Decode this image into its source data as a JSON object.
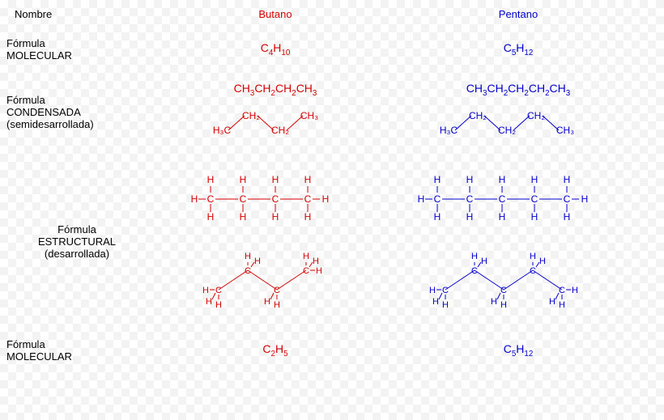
{
  "headers": {
    "col0": "Nombre",
    "col1": "Butano",
    "col2": "Pentano"
  },
  "rows": {
    "molecular": {
      "label1": "Fórmula",
      "label2": "MOLECULAR"
    },
    "condensed": {
      "label1": "Fórmula",
      "label2": "CONDENSADA",
      "label3": "(semidesarrollada)"
    },
    "structural": {
      "label1": "Fórmula",
      "label2": "ESTRUCTURAL",
      "label3": "(desarrollada)"
    },
    "molecular2": {
      "label1": "Fórmula",
      "label2": "MOLECULAR"
    }
  },
  "butano": {
    "color": "#d40000",
    "molecular": {
      "base": "C",
      "s1": "4",
      "mid": "H",
      "s2": "10"
    },
    "condensed_flat": [
      "CH",
      "3",
      "CH",
      "2",
      "CH",
      "2",
      "CH",
      "3"
    ],
    "condensed_zigzag": {
      "groups": [
        "H₃C",
        "CH₂",
        "CH₂",
        "CH₃"
      ],
      "n": 4
    },
    "structural": {
      "carbons": 4
    },
    "molecular2": {
      "base": "C",
      "s1": "2",
      "mid": "H",
      "s2": "5"
    }
  },
  "pentano": {
    "color": "#0000cc",
    "molecular": {
      "base": "C",
      "s1": "5",
      "mid": "H",
      "s2": "12"
    },
    "condensed_flat": [
      "CH",
      "3",
      "CH",
      "2",
      "CH",
      "2",
      "CH",
      "2",
      "CH",
      "3"
    ],
    "condensed_zigzag": {
      "groups": [
        "H₃C",
        "CH₂",
        "CH₂",
        "CH₂",
        "CH₃"
      ],
      "n": 5
    },
    "structural": {
      "carbons": 5
    },
    "molecular2": {
      "base": "C",
      "s1": "5",
      "mid": "H",
      "s2": "12"
    }
  },
  "style": {
    "label_color": "#000000",
    "butano_color": "#d40000",
    "pentano_color": "#0000cc",
    "bond_stroke": 1,
    "atom_font": 12
  }
}
